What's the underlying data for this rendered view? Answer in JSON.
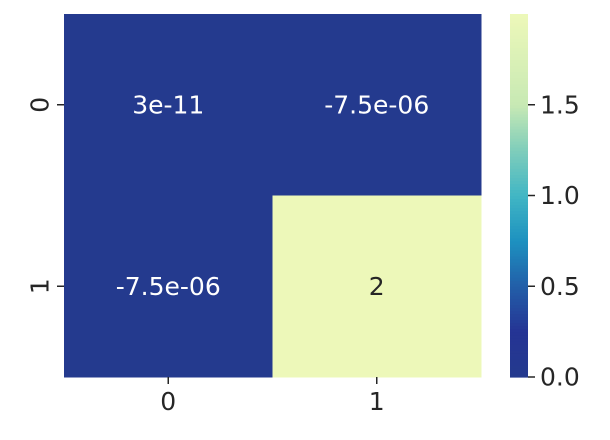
{
  "chart_data": {
    "type": "heatmap",
    "title": "",
    "xlabel": "",
    "ylabel": "",
    "x_categories": [
      "0",
      "1"
    ],
    "y_categories": [
      "0",
      "1"
    ],
    "values": [
      [
        3e-11,
        -7.5e-06
      ],
      [
        -7.5e-06,
        2
      ]
    ],
    "annotations": [
      [
        "3e-11",
        "-7.5e-06"
      ],
      [
        "-7.5e-06",
        "2"
      ]
    ],
    "colormap": "YlGnBu",
    "colorbar": {
      "min": 0.0,
      "max": 2.0,
      "ticks": [
        0.0,
        0.5,
        1.0,
        1.5
      ],
      "tick_labels": [
        "0.0",
        "0.5",
        "1.0",
        "1.5"
      ]
    },
    "colors": {
      "low": "#243a8e",
      "high": "#edf8b9",
      "text_on_dark": "#ffffff",
      "text_on_light": "#262626"
    }
  }
}
